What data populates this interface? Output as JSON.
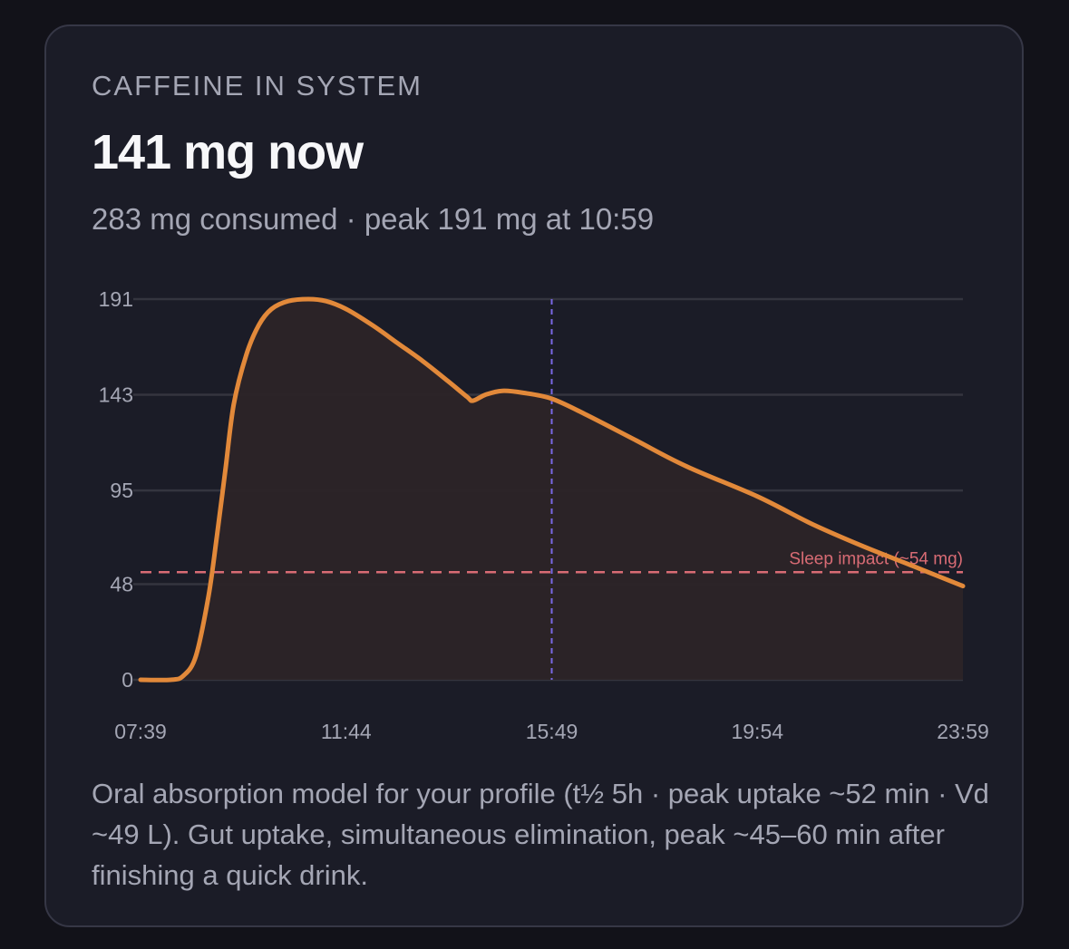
{
  "card": {
    "label": "CAFFEINE IN SYSTEM",
    "value": "141 mg now",
    "subtitle": "283 mg consumed · peak 191 mg at 10:59",
    "note": "Oral absorption model for your profile (t½ 5h · peak uptake ~52 min · Vd ~49 L). Gut uptake, simultaneous elimination, peak ~45–60 min after finishing a quick drink."
  },
  "colors": {
    "curve": "#e2893a",
    "fill": "#2c2427",
    "grid": "#34353f",
    "sleep": "#d86b74",
    "now": "#7a68e6",
    "text": "#a4a6b4"
  },
  "chart_data": {
    "type": "area",
    "x_unit": "time of day",
    "x_range": [
      "07:39",
      "23:59"
    ],
    "ylim": [
      0,
      191
    ],
    "y_ticks": [
      {
        "value": 0,
        "label": "0"
      },
      {
        "value": 48,
        "label": "48"
      },
      {
        "value": 95,
        "label": "95"
      },
      {
        "value": 143,
        "label": "143"
      },
      {
        "value": 191,
        "label": "191"
      }
    ],
    "x_ticks": [
      "07:39",
      "11:44",
      "15:49",
      "19:54",
      "23:59"
    ],
    "grid": "horizontal",
    "series": [
      {
        "points": [
          [
            "07:39",
            0
          ],
          [
            "08:15",
            0
          ],
          [
            "08:30",
            2
          ],
          [
            "08:45",
            12
          ],
          [
            "09:00",
            42
          ],
          [
            "09:10",
            72
          ],
          [
            "09:20",
            105
          ],
          [
            "09:30",
            138
          ],
          [
            "09:45",
            163
          ],
          [
            "10:00",
            178
          ],
          [
            "10:15",
            186
          ],
          [
            "10:35",
            190
          ],
          [
            "10:59",
            191
          ],
          [
            "11:20",
            190
          ],
          [
            "11:44",
            186
          ],
          [
            "12:15",
            178
          ],
          [
            "12:45",
            169
          ],
          [
            "13:15",
            160
          ],
          [
            "13:45",
            150
          ],
          [
            "14:08",
            142
          ],
          [
            "14:15",
            140
          ],
          [
            "14:30",
            143
          ],
          [
            "14:50",
            145
          ],
          [
            "15:15",
            144
          ],
          [
            "15:49",
            141
          ],
          [
            "16:30",
            133
          ],
          [
            "17:30",
            120
          ],
          [
            "18:30",
            107
          ],
          [
            "19:54",
            92
          ],
          [
            "21:00",
            78
          ],
          [
            "22:00",
            67
          ],
          [
            "23:00",
            57
          ],
          [
            "23:59",
            47
          ]
        ]
      }
    ],
    "thresholds": [
      {
        "value": 54,
        "label": "Sleep impact (~54 mg)"
      }
    ],
    "now_marker": "15:49"
  }
}
